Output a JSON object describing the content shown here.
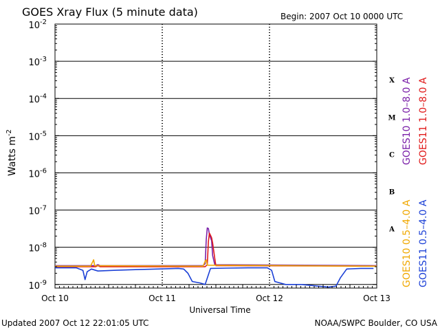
{
  "header": {
    "title": "GOES Xray Flux (5 minute data)",
    "begin": "Begin:  2007 Oct 10 0000 UTC"
  },
  "footer": {
    "updated": "Updated 2007 Oct 12 22:01:05 UTC",
    "credit": "NOAA/SWPC Boulder, CO USA"
  },
  "chart_data": {
    "type": "line",
    "title": "GOES Xray Flux (5 minute data)",
    "xlabel": "Universal Time",
    "ylabel_base": "Watts m",
    "ylabel_exp": "-2",
    "scale": "log",
    "ylim": [
      8e-10,
      0.01
    ],
    "xlim_days": [
      0,
      3
    ],
    "x_ticks": [
      "Oct 10",
      "Oct 11",
      "Oct 12",
      "Oct 13"
    ],
    "y_ticks": [
      {
        "base": "10",
        "exp": "-2"
      },
      {
        "base": "10",
        "exp": "-3"
      },
      {
        "base": "10",
        "exp": "-4"
      },
      {
        "base": "10",
        "exp": "-5"
      },
      {
        "base": "10",
        "exp": "-6"
      },
      {
        "base": "10",
        "exp": "-7"
      },
      {
        "base": "10",
        "exp": "-8"
      },
      {
        "base": "10",
        "exp": "-9"
      }
    ],
    "flare_classes": [
      {
        "label": "X",
        "value": 0.0001
      },
      {
        "label": "M",
        "value": 1e-05
      },
      {
        "label": "C",
        "value": 1e-06
      },
      {
        "label": "B",
        "value": 1e-07
      },
      {
        "label": "A",
        "value": 1e-08
      }
    ],
    "grid": true,
    "series": [
      {
        "name": "GOES10 1.0–8.0 A",
        "color": "#7a1fa8",
        "points": [
          [
            0,
            3.2e-09
          ],
          [
            0.38,
            3.2e-09
          ],
          [
            0.4,
            3.4e-09
          ],
          [
            0.42,
            3.2e-09
          ],
          [
            1.38,
            3.2e-09
          ],
          [
            1.4,
            3.6e-09
          ],
          [
            1.41,
            1.6e-08
          ],
          [
            1.42,
            3.3e-08
          ],
          [
            1.43,
            3.2e-08
          ],
          [
            1.44,
            2.2e-08
          ],
          [
            1.46,
            1.5e-08
          ],
          [
            1.47,
            6e-09
          ],
          [
            1.49,
            3.4e-09
          ],
          [
            3.0,
            3.2e-09
          ]
        ]
      },
      {
        "name": "GOES11 1.0–8.0 A",
        "color": "#e01818",
        "points": [
          [
            0,
            3e-09
          ],
          [
            0.38,
            3e-09
          ],
          [
            0.4,
            3.2e-09
          ],
          [
            0.42,
            3e-09
          ],
          [
            1.4,
            3e-09
          ],
          [
            1.42,
            3.4e-09
          ],
          [
            1.43,
            1.4e-08
          ],
          [
            1.44,
            2.4e-08
          ],
          [
            1.45,
            2.1e-08
          ],
          [
            1.46,
            1.8e-08
          ],
          [
            1.47,
            1.3e-08
          ],
          [
            1.49,
            5e-09
          ],
          [
            1.5,
            3.2e-09
          ],
          [
            3.0,
            3.1e-09
          ]
        ]
      },
      {
        "name": "GOES10 0.5–4.0 A",
        "color": "#f0a800",
        "points": [
          [
            0,
            3.1e-09
          ],
          [
            0.33,
            3.1e-09
          ],
          [
            0.35,
            4e-09
          ],
          [
            0.36,
            4.6e-09
          ],
          [
            0.37,
            3.2e-09
          ],
          [
            1.38,
            3.1e-09
          ],
          [
            1.4,
            4.2e-09
          ],
          [
            1.41,
            4.6e-09
          ],
          [
            1.42,
            3.3e-09
          ],
          [
            3.0,
            3.1e-09
          ]
        ]
      },
      {
        "name": "GOES11 0.5–4.0 A",
        "color": "#1a3fd6",
        "points": [
          [
            0,
            2.8e-09
          ],
          [
            0.2,
            2.8e-09
          ],
          [
            0.26,
            2.4e-09
          ],
          [
            0.28,
            1.35e-09
          ],
          [
            0.3,
            2.2e-09
          ],
          [
            0.34,
            2.6e-09
          ],
          [
            0.4,
            2.3e-09
          ],
          [
            0.55,
            2.4e-09
          ],
          [
            0.75,
            2.5e-09
          ],
          [
            0.95,
            2.6e-09
          ],
          [
            1.15,
            2.7e-09
          ],
          [
            1.2,
            2.6e-09
          ],
          [
            1.24,
            2e-09
          ],
          [
            1.28,
            1.2e-09
          ],
          [
            1.35,
            1.1e-09
          ],
          [
            1.4,
            1e-09
          ],
          [
            1.45,
            2.7e-09
          ],
          [
            1.6,
            2.75e-09
          ],
          [
            1.8,
            2.8e-09
          ],
          [
            1.98,
            2.8e-09
          ],
          [
            2.02,
            2.4e-09
          ],
          [
            2.05,
            1.2e-09
          ],
          [
            2.15,
            1e-09
          ],
          [
            2.3,
            1e-09
          ],
          [
            2.45,
            9e-10
          ],
          [
            2.55,
            8.5e-10
          ],
          [
            2.62,
            9e-10
          ],
          [
            2.66,
            1.5e-09
          ],
          [
            2.72,
            2.6e-09
          ],
          [
            2.85,
            2.7e-09
          ],
          [
            2.97,
            2.7e-09
          ]
        ]
      }
    ]
  }
}
